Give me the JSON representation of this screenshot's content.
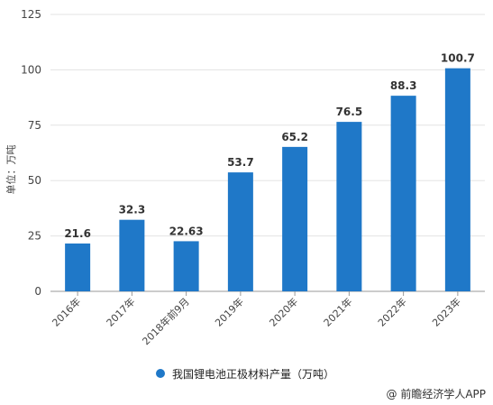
{
  "chart_data": {
    "type": "bar",
    "categories": [
      "2016年",
      "2017年",
      "2018年前9月",
      "2019年",
      "2020年",
      "2021年",
      "2022年",
      "2023年"
    ],
    "series": [
      {
        "name": "我国锂电池正极材料产量（万吨）",
        "values": [
          21.6,
          32.3,
          22.63,
          53.7,
          65.2,
          76.5,
          88.3,
          100.7
        ]
      }
    ],
    "value_labels": [
      "21.6",
      "32.3",
      "22.63",
      "53.7",
      "65.2",
      "76.5",
      "88.3",
      "100.7"
    ],
    "ylabel": "单位：万吨",
    "ylim": [
      0,
      125
    ],
    "yticks": [
      0,
      25,
      50,
      75,
      100,
      125
    ],
    "grid": true,
    "legend_position": "bottom",
    "bar_color": "#1F78C8"
  },
  "legend": {
    "label": "我国锂电池正极材料产量（万吨）"
  },
  "credit": "@ 前瞻经济学人APP"
}
